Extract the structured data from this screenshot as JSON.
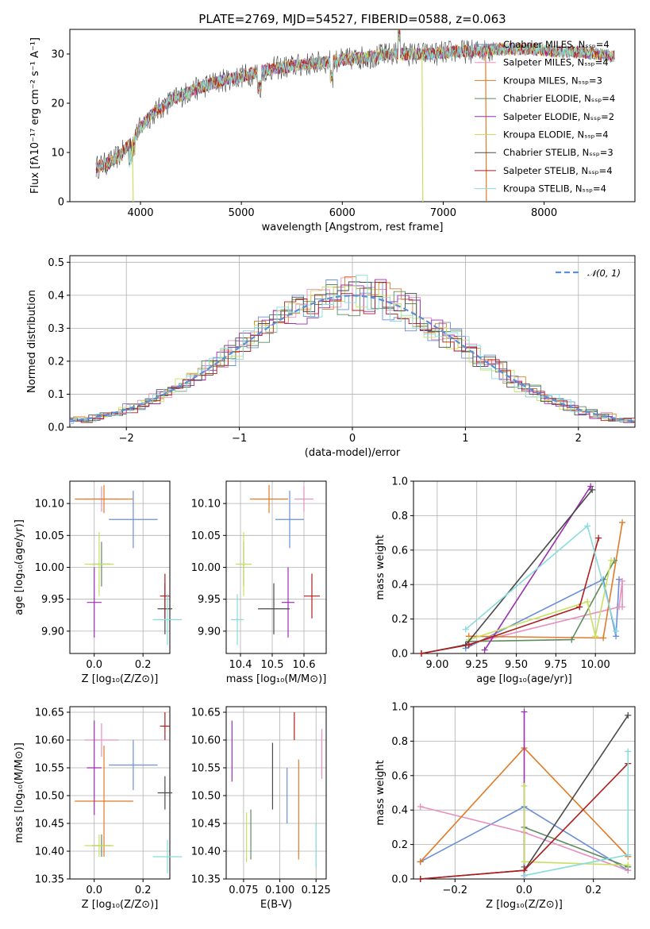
{
  "colors": {
    "chabrier_miles": "#6a8fd8",
    "salpeter_miles": "#e88fbf",
    "kroupa_miles": "#e07b27",
    "chabrier_elodie": "#5e8c5e",
    "salpeter_elodie": "#9a2fb0",
    "kroupa_elodie": "#c8e060",
    "chabrier_stelib": "#4a4a4a",
    "salpeter_stelib": "#b01c1c",
    "kroupa_stelib": "#88dcdc",
    "gauss": "#5a8fd8"
  },
  "chart_data": [
    {
      "type": "line",
      "title": "PLATE=2769, MJD=54527, FIBERID=0588, z=0.063",
      "xlabel": "wavelength [Angstrom, rest frame]",
      "ylabel": "Flux [fλ10⁻¹⁷ erg cm⁻² s⁻¹ A⁻¹]",
      "xlim": [
        3300,
        8900
      ],
      "ylim": [
        0,
        35
      ],
      "xticks": [
        4000,
        5000,
        6000,
        7000,
        8000
      ],
      "yticks": [
        0,
        10,
        20,
        30
      ],
      "legend_position": "right",
      "legend": [
        "Chabrier MILES, Nₛₛₚ=4",
        "Salpeter MILES, Nₛₛₚ=4",
        "Kroupa MILES, Nₛₛₚ=3",
        "Chabrier ELODIE, Nₛₛₚ=4",
        "Salpeter ELODIE, Nₛₛₚ=2",
        "Kroupa ELODIE, Nₛₛₚ=4",
        "Chabrier STELIB, Nₛₛₚ=3",
        "Salpeter STELIB, Nₛₛₚ=4",
        "Kroupa STELIB, Nₛₛₚ=4"
      ],
      "continuum": {
        "x": [
          3560,
          3700,
          3800,
          3900,
          4000,
          4100,
          4300,
          4500,
          4700,
          4900,
          5100,
          5300,
          5500,
          5700,
          5900,
          6100,
          6300,
          6500,
          6700,
          6900,
          7100,
          7300,
          7500,
          7700,
          7900,
          8100,
          8300,
          8500,
          8700
        ],
        "y": [
          7,
          8,
          9.5,
          12,
          15,
          17.5,
          20.5,
          22.5,
          24,
          25,
          26,
          27,
          27.5,
          28,
          28.5,
          29,
          29.5,
          30,
          30,
          30,
          30.5,
          30.5,
          31,
          31,
          31,
          30.5,
          30.5,
          30,
          29.5
        ]
      },
      "dips": [
        {
          "series": "kroupa_elodie",
          "x": 3920,
          "y": 0
        },
        {
          "series": "kroupa_elodie",
          "x": 6790,
          "y": 0
        },
        {
          "series": "kroupa_miles",
          "x": 7420,
          "y": 0
        }
      ]
    },
    {
      "type": "bar",
      "xlabel": "(data-model)/error",
      "ylabel": "Normed distribution",
      "xlim": [
        -2.5,
        2.5
      ],
      "ylim": [
        0,
        0.52
      ],
      "xticks": [
        -2,
        -1,
        0,
        1,
        2
      ],
      "yticks": [
        0.0,
        0.1,
        0.2,
        0.3,
        0.4,
        0.5
      ],
      "legend": [
        "𝒩(0, 1)"
      ],
      "legend_position": "top-right",
      "bin_width": 0.1
    },
    {
      "type": "scatter",
      "xlabel": "Z [log₁₀(Z/Z⊙)]",
      "ylabel": "age  [log₁₀(age/yr)]",
      "xlim": [
        -0.1,
        0.31
      ],
      "ylim": [
        9.865,
        10.135
      ],
      "xticks": [
        0.0,
        0.2
      ],
      "yticks": [
        9.9,
        9.95,
        10.0,
        10.05,
        10.1
      ],
      "points": [
        {
          "s": "chabrier_miles",
          "x": 0.16,
          "y": 10.075,
          "ex": 0.1,
          "ey": 0.045
        },
        {
          "s": "salpeter_miles",
          "x": 0.03,
          "y": 10.107,
          "ex": 0.07,
          "ey": 0.02
        },
        {
          "s": "kroupa_miles",
          "x": 0.04,
          "y": 10.107,
          "ex": 0.12,
          "ey": 0.022
        },
        {
          "s": "chabrier_elodie",
          "x": 0.03,
          "y": 10.005,
          "ex": 0.04,
          "ey": 0.035
        },
        {
          "s": "salpeter_elodie",
          "x": 0.0,
          "y": 9.945,
          "ex": 0.03,
          "ey": 0.055
        },
        {
          "s": "kroupa_elodie",
          "x": 0.02,
          "y": 10.005,
          "ex": 0.06,
          "ey": 0.05
        },
        {
          "s": "chabrier_stelib",
          "x": 0.29,
          "y": 9.935,
          "ex": 0.03,
          "ey": 0.04
        },
        {
          "s": "salpeter_stelib",
          "x": 0.29,
          "y": 9.955,
          "ex": 0.02,
          "ey": 0.035
        },
        {
          "s": "kroupa_stelib",
          "x": 0.3,
          "y": 9.918,
          "ex": 0.06,
          "ey": 0.04
        }
      ]
    },
    {
      "type": "scatter",
      "xlabel": "mass [log₁₀(M/M⊙)]",
      "xlim": [
        10.355,
        10.67
      ],
      "ylim": [
        9.865,
        10.135
      ],
      "xticks": [
        10.4,
        10.5,
        10.6
      ],
      "yticks": [
        9.9,
        9.95,
        10.0,
        10.05,
        10.1
      ],
      "points": [
        {
          "s": "chabrier_miles",
          "x": 10.555,
          "y": 10.075,
          "ex": 0.045,
          "ey": 0.045
        },
        {
          "s": "salpeter_miles",
          "x": 10.6,
          "y": 10.107,
          "ex": 0.03,
          "ey": 0.02
        },
        {
          "s": "kroupa_miles",
          "x": 10.49,
          "y": 10.107,
          "ex": 0.06,
          "ey": 0.022
        },
        {
          "s": "chabrier_elodie",
          "x": 10.41,
          "y": 10.005,
          "ex": 0.01,
          "ey": 0.035
        },
        {
          "s": "salpeter_elodie",
          "x": 10.55,
          "y": 9.945,
          "ex": 0.02,
          "ey": 0.055
        },
        {
          "s": "kroupa_elodie",
          "x": 10.41,
          "y": 10.005,
          "ex": 0.025,
          "ey": 0.05
        },
        {
          "s": "chabrier_stelib",
          "x": 10.505,
          "y": 9.935,
          "ex": 0.05,
          "ey": 0.04
        },
        {
          "s": "salpeter_stelib",
          "x": 10.625,
          "y": 9.955,
          "ex": 0.025,
          "ey": 0.035
        },
        {
          "s": "kroupa_stelib",
          "x": 10.39,
          "y": 9.918,
          "ex": 0.02,
          "ey": 0.04
        }
      ]
    },
    {
      "type": "line",
      "xlabel": "age  [log₁₀(age/yr)]",
      "ylabel": "mass weight",
      "xlim": [
        8.85,
        10.25
      ],
      "ylim": [
        0,
        1.0
      ],
      "xticks": [
        9.0,
        9.25,
        9.5,
        9.75,
        10.0
      ],
      "yticks": [
        0.0,
        0.2,
        0.4,
        0.6,
        0.8,
        1.0
      ],
      "series": [
        {
          "s": "chabrier_miles",
          "x": [
            9.18,
            10.05,
            10.13,
            10.15
          ],
          "y": [
            0.03,
            0.43,
            0.1,
            0.43
          ]
        },
        {
          "s": "salpeter_miles",
          "x": [
            9.18,
            10.15,
            10.17,
            10.17
          ],
          "y": [
            0.05,
            0.27,
            0.42,
            0.27
          ]
        },
        {
          "s": "kroupa_miles",
          "x": [
            9.2,
            10.05,
            10.17
          ],
          "y": [
            0.1,
            0.09,
            0.76
          ]
        },
        {
          "s": "chabrier_elodie",
          "x": [
            9.2,
            9.85,
            10.12
          ],
          "y": [
            0.07,
            0.08,
            0.54
          ]
        },
        {
          "s": "salpeter_elodie",
          "x": [
            9.3,
            9.97
          ],
          "y": [
            0.02,
            0.97
          ]
        },
        {
          "s": "kroupa_elodie",
          "x": [
            9.2,
            9.95,
            10.0,
            10.1
          ],
          "y": [
            0.08,
            0.3,
            0.1,
            0.54
          ]
        },
        {
          "s": "chabrier_stelib",
          "x": [
            8.9,
            9.18,
            9.98
          ],
          "y": [
            0.0,
            0.05,
            0.95
          ]
        },
        {
          "s": "salpeter_stelib",
          "x": [
            8.9,
            9.2,
            9.9,
            10.02
          ],
          "y": [
            0.0,
            0.05,
            0.27,
            0.67
          ]
        },
        {
          "s": "kroupa_stelib",
          "x": [
            9.18,
            9.95,
            10.13
          ],
          "y": [
            0.14,
            0.74,
            0.13
          ]
        }
      ]
    },
    {
      "type": "scatter",
      "xlabel": "Z [log₁₀(Z/Z⊙)]",
      "ylabel": "mass [log₁₀(M/M⊙)]",
      "xlim": [
        -0.1,
        0.31
      ],
      "ylim": [
        10.35,
        10.66
      ],
      "xticks": [
        0.0,
        0.2
      ],
      "yticks": [
        10.35,
        10.4,
        10.45,
        10.5,
        10.55,
        10.6,
        10.65
      ],
      "points": [
        {
          "s": "chabrier_miles",
          "x": 0.16,
          "y": 10.555,
          "ex": 0.1,
          "ey": 0.045
        },
        {
          "s": "salpeter_miles",
          "x": 0.03,
          "y": 10.6,
          "ex": 0.07,
          "ey": 0.03
        },
        {
          "s": "kroupa_miles",
          "x": 0.04,
          "y": 10.49,
          "ex": 0.12,
          "ey": 0.1
        },
        {
          "s": "chabrier_elodie",
          "x": 0.03,
          "y": 10.41,
          "ex": 0.04,
          "ey": 0.02
        },
        {
          "s": "salpeter_elodie",
          "x": 0.0,
          "y": 10.55,
          "ex": 0.03,
          "ey": 0.085
        },
        {
          "s": "kroupa_elodie",
          "x": 0.02,
          "y": 10.41,
          "ex": 0.06,
          "ey": 0.02
        },
        {
          "s": "chabrier_stelib",
          "x": 0.29,
          "y": 10.505,
          "ex": 0.03,
          "ey": 0.03
        },
        {
          "s": "salpeter_stelib",
          "x": 0.29,
          "y": 10.625,
          "ex": 0.02,
          "ey": 0.025
        },
        {
          "s": "kroupa_stelib",
          "x": 0.3,
          "y": 10.39,
          "ex": 0.06,
          "ey": 0.03
        }
      ]
    },
    {
      "type": "scatter",
      "xlabel": "E(B-V)",
      "xlim": [
        0.063,
        0.132
      ],
      "ylim": [
        10.35,
        10.66
      ],
      "xticks": [
        0.075,
        0.1,
        0.125
      ],
      "yticks": [
        10.35,
        10.4,
        10.45,
        10.5,
        10.55,
        10.6,
        10.65
      ],
      "points": [
        {
          "s": "salpeter_elodie",
          "x": 0.067,
          "y": 10.58,
          "ey": 0.055
        },
        {
          "s": "kroupa_elodie",
          "x": 0.077,
          "y": 10.425,
          "ey": 0.045
        },
        {
          "s": "chabrier_elodie",
          "x": 0.08,
          "y": 10.43,
          "ey": 0.045
        },
        {
          "s": "chabrier_stelib",
          "x": 0.095,
          "y": 10.535,
          "ey": 0.06
        },
        {
          "s": "chabrier_miles",
          "x": 0.105,
          "y": 10.5,
          "ey": 0.05
        },
        {
          "s": "salpeter_stelib",
          "x": 0.11,
          "y": 10.625,
          "ey": 0.025
        },
        {
          "s": "kroupa_miles",
          "x": 0.113,
          "y": 10.475,
          "ey": 0.09
        },
        {
          "s": "kroupa_stelib",
          "x": 0.125,
          "y": 10.41,
          "ey": 0.04
        },
        {
          "s": "salpeter_miles",
          "x": 0.129,
          "y": 10.575,
          "ey": 0.045
        }
      ]
    },
    {
      "type": "line",
      "xlabel": "Z [log₁₀(Z/Z⊙)]",
      "ylabel": "mass weight",
      "xlim": [
        -0.32,
        0.32
      ],
      "ylim": [
        0,
        1.0
      ],
      "xticks": [
        -0.2,
        0.0,
        0.2
      ],
      "yticks": [
        0.0,
        0.2,
        0.4,
        0.6,
        0.8,
        1.0
      ],
      "series": [
        {
          "s": "chabrier_miles",
          "x": [
            -0.3,
            0.0,
            0.3
          ],
          "y": [
            0.1,
            0.42,
            0.05
          ]
        },
        {
          "s": "salpeter_miles",
          "x": [
            -0.3,
            0.0,
            0.3
          ],
          "y": [
            0.42,
            0.27,
            0.05
          ]
        },
        {
          "s": "kroupa_miles",
          "x": [
            -0.3,
            0.0,
            0.3
          ],
          "y": [
            0.1,
            0.76,
            0.13
          ]
        },
        {
          "s": "chabrier_elodie",
          "x": [
            0.0,
            0.0,
            0.3
          ],
          "y": [
            0.07,
            0.3,
            0.07
          ]
        },
        {
          "s": "salpeter_elodie",
          "x": [
            0.0,
            0.0,
            0.0
          ],
          "y": [
            0.02,
            0.97,
            0.02
          ]
        },
        {
          "s": "kroupa_elodie",
          "x": [
            0.0,
            0.0,
            0.3
          ],
          "y": [
            0.54,
            0.1,
            0.08
          ]
        },
        {
          "s": "chabrier_stelib",
          "x": [
            -0.3,
            0.0,
            0.3
          ],
          "y": [
            0.0,
            0.05,
            0.95
          ]
        },
        {
          "s": "salpeter_stelib",
          "x": [
            -0.3,
            0.0,
            0.3
          ],
          "y": [
            0.0,
            0.05,
            0.67
          ]
        },
        {
          "s": "kroupa_stelib",
          "x": [
            0.0,
            0.3,
            0.3
          ],
          "y": [
            0.02,
            0.14,
            0.74
          ]
        }
      ]
    }
  ]
}
